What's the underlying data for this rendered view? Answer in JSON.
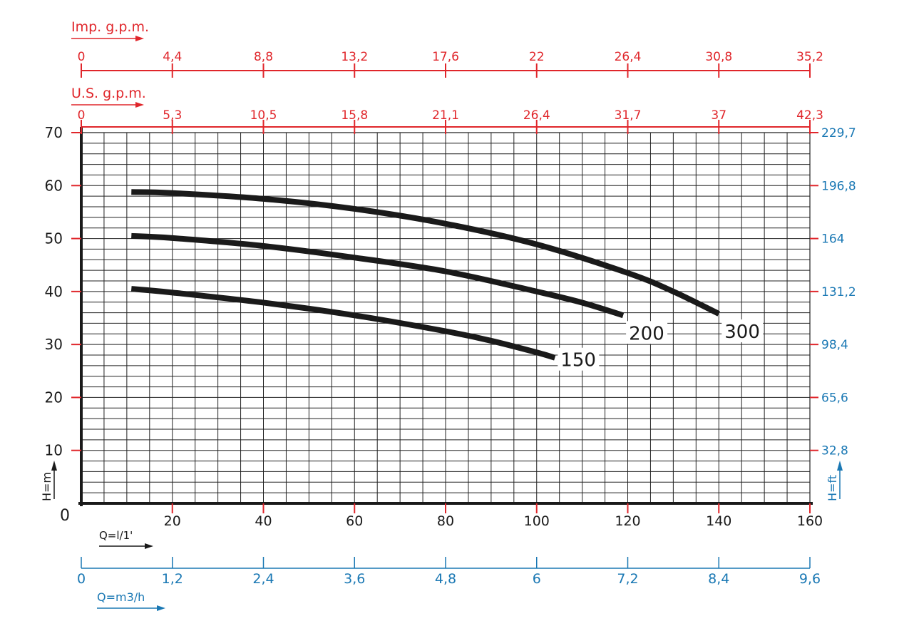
{
  "chart_data": {
    "type": "line",
    "x_unit_label": "Q=l/1'",
    "x_ticks": [
      0,
      20,
      40,
      60,
      80,
      100,
      120,
      140,
      160
    ],
    "xlim": [
      0,
      160
    ],
    "y_unit_label": "H=m",
    "y_ticks": [
      0,
      10,
      20,
      30,
      40,
      50,
      60,
      70
    ],
    "ylim": [
      0,
      70
    ],
    "right_axis": {
      "unit_label": "H=ft",
      "tick_labels": [
        "32,8",
        "65,6",
        "98,4",
        "131,2",
        "164",
        "196,8",
        "229,7"
      ],
      "tick_positions_m": [
        10,
        20,
        30,
        40,
        50,
        60,
        70
      ]
    },
    "top_axis_imp": {
      "label": "Imp. g.p.m.",
      "tick_labels": [
        "0",
        "4,4",
        "8,8",
        "13,2",
        "17,6",
        "22",
        "26,4",
        "30,8",
        "35,2"
      ]
    },
    "top_axis_us": {
      "label": "U.S.  g.p.m.",
      "tick_labels": [
        "0",
        "5,3",
        "10,5",
        "15,8",
        "21,1",
        "26,4",
        "31,7",
        "37",
        "42,3"
      ]
    },
    "bottom_axis_m3h": {
      "label": "Q=m3/h",
      "tick_labels": [
        "0",
        "1,2",
        "2,4",
        "3,6",
        "4,8",
        "6",
        "7,2",
        "8,4",
        "9,6"
      ]
    },
    "grid": true,
    "series": [
      {
        "name": "150",
        "x": [
          11,
          20,
          40,
          60,
          80,
          90,
          100,
          104
        ],
        "y": [
          40.5,
          39.8,
          37.9,
          35.5,
          32.5,
          30.7,
          28.5,
          27.5
        ]
      },
      {
        "name": "200",
        "x": [
          11,
          20,
          40,
          60,
          80,
          100,
          110,
          119
        ],
        "y": [
          50.5,
          50.1,
          48.6,
          46.4,
          43.8,
          40.0,
          37.9,
          35.5
        ]
      },
      {
        "name": "300",
        "x": [
          11,
          20,
          40,
          60,
          80,
          100,
          120,
          130,
          140
        ],
        "y": [
          58.8,
          58.6,
          57.5,
          55.6,
          52.8,
          48.9,
          43.5,
          40.0,
          35.8
        ]
      }
    ]
  },
  "colors": {
    "red": "#e0262b",
    "blue": "#1a78b4",
    "black": "#1a1a1a",
    "grid": "#222222"
  }
}
